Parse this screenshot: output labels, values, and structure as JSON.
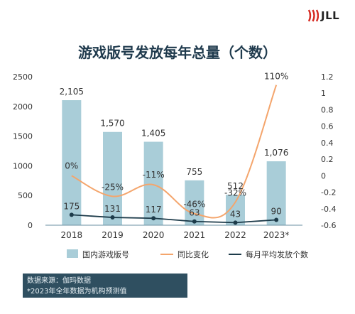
{
  "brand": {
    "name": "JLL"
  },
  "notes": {
    "source": "数据来源：伽玛数据",
    "footnote": "*2023年全年数据为机构预测值"
  },
  "colors": {
    "bar": "#a9cdd8",
    "yoy_line": "#f4a56c",
    "monthly_line": "#1d3b4a",
    "title": "#1f3a4d",
    "note_bg": "#2f4f60",
    "logo_red": "#d62a22"
  },
  "chart_data": {
    "type": "bar",
    "title": "游戏版号发放每年总量（个数）",
    "categories": [
      "2018",
      "2019",
      "2020",
      "2021",
      "2022",
      "2023*"
    ],
    "ylim": [
      0,
      2500
    ],
    "yticks": [
      "0",
      "500",
      "1000",
      "1500",
      "2000",
      "2500"
    ],
    "y2lim": [
      -0.6,
      1.2
    ],
    "y2ticks": [
      "-0.6",
      "-0.4",
      "-0.2",
      "0",
      "0.2",
      "0.4",
      "0.6",
      "0.8",
      "1",
      "1.2"
    ],
    "grid": false,
    "legend_position": "bottom",
    "series": [
      {
        "name": "国内游戏版号",
        "type": "bar",
        "axis": "left",
        "values": [
          2105,
          1570,
          1405,
          755,
          512,
          1076
        ],
        "labels": [
          "2,105",
          "1,570",
          "1,405",
          "755",
          "512",
          "1,076"
        ]
      },
      {
        "name": "同比变化",
        "type": "line",
        "axis": "right",
        "values": [
          0,
          -0.25,
          -0.11,
          -0.46,
          -0.32,
          1.1
        ],
        "labels": [
          "0%",
          "-25%",
          "-11%",
          "-46%",
          "-32%",
          "110%"
        ]
      },
      {
        "name": "每月平均发放个数",
        "type": "line",
        "axis": "left",
        "values": [
          175,
          131,
          117,
          63,
          43,
          90
        ],
        "labels": [
          "175",
          "131",
          "117",
          "63",
          "43",
          "90"
        ]
      }
    ]
  }
}
